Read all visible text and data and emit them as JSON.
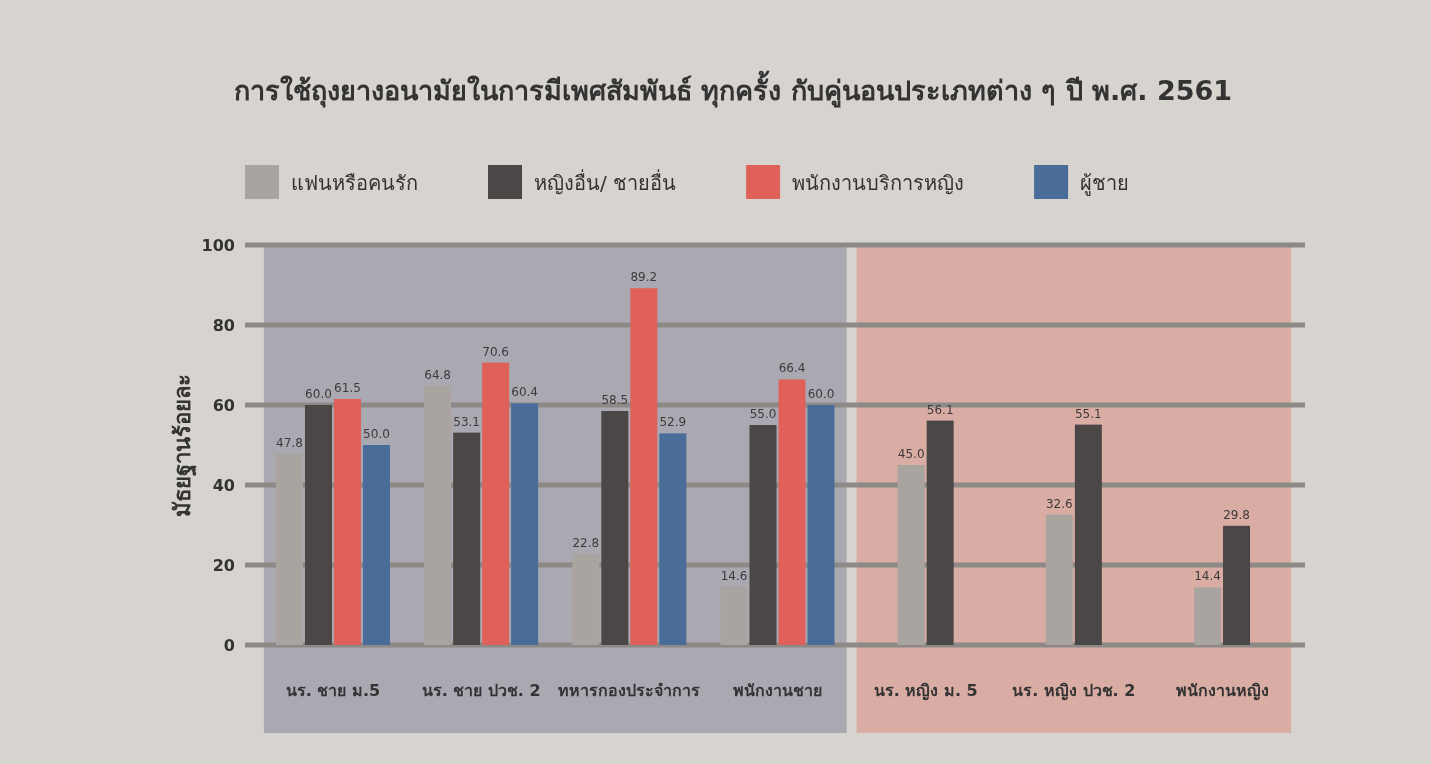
{
  "chart_data": {
    "type": "bar",
    "title": "การใช้ถุงยางอนามัยในการมีเพศสัมพันธ์ ทุกครั้ง กับคู่นอนประเภทต่าง ๆ ปี พ.ศ. 2561",
    "ylabel": "มัธยฐานร้อยละ",
    "categories": [
      "นร. ชาย ม.5",
      "นร. ชาย ปวช. 2",
      "ทหารกองประจำการ",
      "พนักงานชาย",
      "นร. หญิง ม. 5",
      "นร. หญิง ปวช. 2",
      "พนักงานหญิง"
    ],
    "series": [
      {
        "name": "แฟนหรือคนรัก",
        "color": "#a9a49f",
        "values": [
          47.8,
          64.8,
          22.8,
          14.6,
          45.0,
          32.6,
          14.4
        ],
        "value_labels": [
          "47.8",
          "64.8",
          "22.8",
          "14.6",
          "45.0",
          "32.6",
          "14.4"
        ]
      },
      {
        "name": "หญิงอื่น/ ชายอื่น",
        "color": "#4b4746",
        "values": [
          60.0,
          53.1,
          58.5,
          55.0,
          56.1,
          55.1,
          29.8
        ],
        "value_labels": [
          "60.0",
          "53.1",
          "58.5",
          "55.0",
          "56.1",
          "55.1",
          "29.8"
        ]
      },
      {
        "name": "พนักงานบริการหญิง",
        "color": "#e0615a",
        "values": [
          61.5,
          70.6,
          89.2,
          66.4,
          null,
          null,
          null
        ],
        "value_labels": [
          "61.5",
          "70.6",
          "89.2",
          "66.4",
          null,
          null,
          null
        ]
      },
      {
        "name": "ผู้ชาย",
        "color": "#4a6c98",
        "values": [
          50.0,
          60.4,
          52.9,
          60.0,
          null,
          null,
          null
        ],
        "value_labels": [
          "50.0",
          "60.4",
          "52.9",
          "60.0",
          null,
          null,
          null
        ]
      }
    ],
    "ylim": [
      0,
      100
    ],
    "yticks": [
      0,
      20,
      40,
      60,
      80,
      100
    ],
    "grid": "y",
    "legend": "top",
    "bands": [
      {
        "axis": "x",
        "from": "นร. ชาย ม.5",
        "to": "พนักงานชาย",
        "color": "#aaa8b1"
      },
      {
        "axis": "x",
        "from": "นร. หญิง ม. 5",
        "to": "พนักงานหญิง",
        "color": "#d9aca4"
      }
    ]
  }
}
